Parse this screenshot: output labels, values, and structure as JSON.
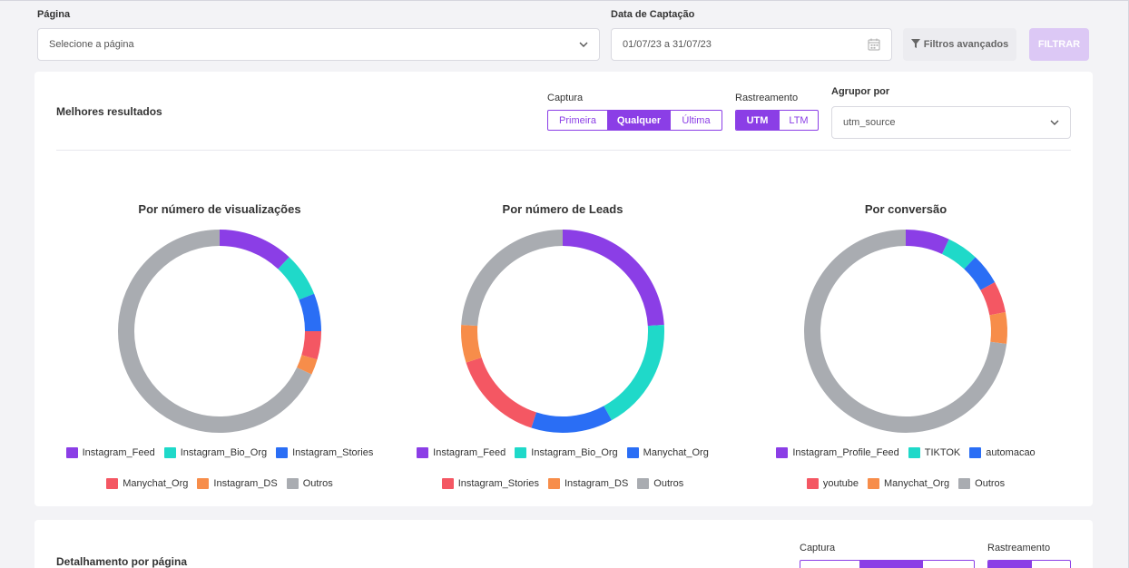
{
  "filters": {
    "page_label": "Página",
    "page_placeholder": "Selecione a página",
    "date_label": "Data de Captação",
    "date_value": "01/07/23 a 31/07/23",
    "advanced_label": "Filtros avançados",
    "filter_button": "FILTRAR"
  },
  "best": {
    "title": "Melhores resultados",
    "capture_label": "Captura",
    "capture_options": [
      "Primeira",
      "Qualquer",
      "Última"
    ],
    "capture_selected": "Qualquer",
    "tracking_label": "Rastreamento",
    "tracking_options": [
      "UTM",
      "LTM"
    ],
    "tracking_selected": "UTM",
    "group_label": "Agrupor por",
    "group_value": "utm_source"
  },
  "detail": {
    "title": "Detalhamento por página",
    "capture_label": "Captura",
    "tracking_label": "Rastreamento"
  },
  "colors": {
    "purple": "#8b3ee6",
    "teal": "#1fd9c9",
    "blue": "#2a6ef5",
    "red": "#f45763",
    "orange": "#f78d4a",
    "gray": "#a9acb1"
  },
  "chart_data": [
    {
      "type": "pie",
      "title": "Por número de visualizações",
      "categories": [
        "Instagram_Feed",
        "Instagram_Bio_Org",
        "Instagram_Stories",
        "Manychat_Org",
        "Instagram_DS",
        "Outros"
      ],
      "values": [
        12,
        7,
        6,
        4.5,
        2.5,
        68
      ],
      "colors": [
        "#8b3ee6",
        "#1fd9c9",
        "#2a6ef5",
        "#f45763",
        "#f78d4a",
        "#a9acb1"
      ]
    },
    {
      "type": "pie",
      "title": "Por número de Leads",
      "categories": [
        "Instagram_Feed",
        "Instagram_Bio_Org",
        "Manychat_Org",
        "Instagram_Stories",
        "Instagram_DS",
        "Outros"
      ],
      "values": [
        24,
        18,
        13,
        15,
        6,
        24
      ],
      "colors": [
        "#8b3ee6",
        "#1fd9c9",
        "#2a6ef5",
        "#f45763",
        "#f78d4a",
        "#a9acb1"
      ]
    },
    {
      "type": "pie",
      "title": "Por conversão",
      "categories": [
        "Instagram_Profile_Feed",
        "TIKTOK",
        "automacao",
        "youtube",
        "Manychat_Org",
        "Outros"
      ],
      "values": [
        7,
        5,
        5,
        5,
        5,
        73
      ],
      "colors": [
        "#8b3ee6",
        "#1fd9c9",
        "#2a6ef5",
        "#f45763",
        "#f78d4a",
        "#a9acb1"
      ]
    }
  ]
}
